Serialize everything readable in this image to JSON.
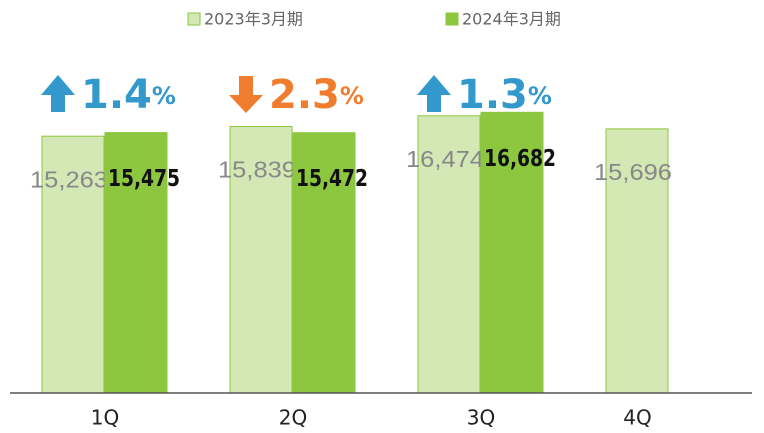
{
  "chart_data": {
    "type": "bar",
    "categories": [
      "1Q",
      "2Q",
      "3Q",
      "4Q"
    ],
    "series": [
      {
        "name": "2023年3月期",
        "color": "#d3e8b5",
        "values": [
          15263,
          15839,
          16474,
          15696
        ],
        "value_labels": [
          "15,263",
          "15,839",
          "16,474",
          "15,696"
        ]
      },
      {
        "name": "2024年3月期",
        "color": "#8dc63f",
        "values": [
          15475,
          15472,
          16682,
          null
        ],
        "value_labels": [
          "15,475",
          "15,472",
          "16,682",
          null
        ]
      }
    ],
    "ylim": [
      0,
      23000
    ],
    "legend": "top",
    "annotations": [
      {
        "text": "1.4",
        "unit": "%",
        "direction": "up",
        "color": "#3399cc"
      },
      {
        "text": "2.3",
        "unit": "%",
        "direction": "down",
        "color": "#f07d2e"
      },
      {
        "text": "1.3",
        "unit": "%",
        "direction": "up",
        "color": "#3399cc"
      }
    ]
  }
}
